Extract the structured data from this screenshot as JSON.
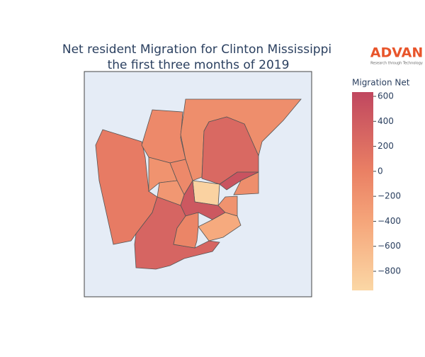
{
  "chart_data": {
    "type": "choropleth",
    "title": "Net resident Migration for Clinton Mississippi",
    "subtitle": "the first three months of 2019",
    "logo": {
      "name": "ADVAN",
      "tagline": "Research through Technology"
    },
    "colorbar_title": "Migration Net",
    "zlim": [
      -953,
      634
    ],
    "zticks": [
      {
        "value": 600,
        "label": "600"
      },
      {
        "value": 400,
        "label": "400"
      },
      {
        "value": 200,
        "label": "200"
      },
      {
        "value": 0,
        "label": "0"
      },
      {
        "value": -200,
        "label": "−200"
      },
      {
        "value": -400,
        "label": "−400"
      },
      {
        "value": -600,
        "label": "−600"
      },
      {
        "value": -800,
        "label": "−800"
      }
    ],
    "colorscale": [
      [
        0,
        "#fbd7a5"
      ],
      [
        0.35,
        "#f5a57a"
      ],
      [
        0.6,
        "#ea8064"
      ],
      [
        1,
        "#c0475f"
      ]
    ],
    "values": [
      50,
      -100,
      -150,
      250,
      -200,
      -100,
      -250,
      -900,
      500,
      -150,
      450,
      -200,
      -450,
      300,
      -50
    ]
  }
}
